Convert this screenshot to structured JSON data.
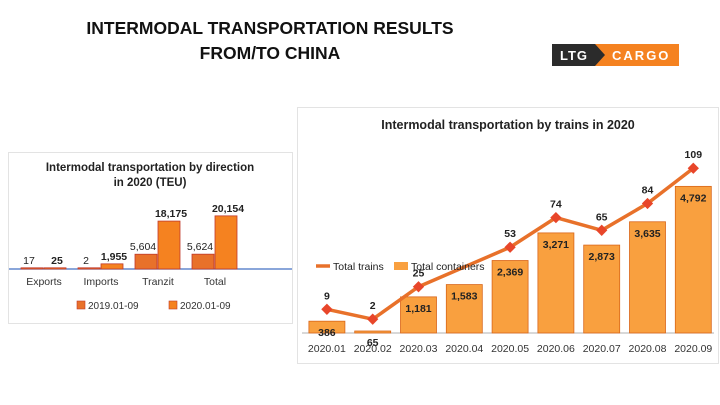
{
  "page": {
    "title_line1": "INTERMODAL TRANSPORTATION RESULTS",
    "title_line2": "FROM/TO CHINA",
    "logo_left": "LTG",
    "logo_right": "CARGO"
  },
  "colors": {
    "orange": "#f58220",
    "light_orange": "#f9a03f",
    "dark_orange": "#e8712a",
    "marker": "#e8462a",
    "red_border": "#c0392b",
    "baseline": "#4472c4"
  },
  "chart_data": [
    {
      "type": "bar",
      "title": "Intermodal transportation by direction in 2020 (TEU)",
      "title_lines": [
        "Intermodal transportation by direction",
        "in 2020 (TEU)"
      ],
      "categories": [
        "Exports",
        "Imports",
        "Tranzit",
        "Total"
      ],
      "series": [
        {
          "name": "2019.01-09",
          "values": [
            17,
            2,
            5604,
            5624
          ],
          "labels": [
            "17",
            "2",
            "5,604",
            "5,624"
          ],
          "color": "#e8712a"
        },
        {
          "name": "2020.01-09",
          "values": [
            25,
            1955,
            18175,
            20154
          ],
          "labels": [
            "25",
            "1,955",
            "18,175",
            "20,154"
          ],
          "color": "#f58220"
        }
      ],
      "ylim": [
        0,
        22000
      ],
      "grid": false,
      "legend": "bottom"
    },
    {
      "type": "bar",
      "title": "Intermodal transportation by trains in 2020",
      "categories": [
        "2020.01",
        "2020.02",
        "2020.03",
        "2020.04",
        "2020.05",
        "2020.06",
        "2020.07",
        "2020.08",
        "2020.09"
      ],
      "series": [
        {
          "name": "Total containers",
          "kind": "bar",
          "values": [
            386,
            65,
            1181,
            1583,
            2369,
            3271,
            2873,
            3635,
            4792
          ],
          "labels": [
            "386",
            "65",
            "1,181",
            "1,583",
            "2,369",
            "3,271",
            "2,873",
            "3,635",
            "4,792"
          ],
          "color": "#f9a03f"
        },
        {
          "name": "Total trains",
          "kind": "line",
          "values": [
            9,
            2,
            25,
            null,
            53,
            74,
            65,
            84,
            109
          ],
          "labels": [
            "9",
            "2",
            "25",
            "",
            "53",
            "74",
            "65",
            "84",
            "109"
          ],
          "color": "#e8712a"
        }
      ],
      "ylim_bars": [
        0,
        5000
      ],
      "ylim_line": [
        0,
        112
      ],
      "grid": false,
      "legend": "top-left"
    }
  ]
}
